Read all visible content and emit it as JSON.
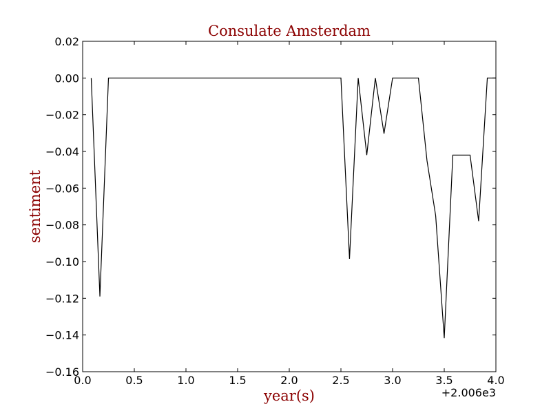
{
  "chart_data": {
    "type": "line",
    "title": "Consulate Amsterdam",
    "xlabel": "year(s)",
    "ylabel": "sentiment",
    "x_offset_label": "+2.006e3",
    "xlim": [
      0.0,
      4.0
    ],
    "ylim": [
      -0.16,
      0.02
    ],
    "x_ticks": [
      0.0,
      0.5,
      1.0,
      1.5,
      2.0,
      2.5,
      3.0,
      3.5,
      4.0
    ],
    "x_tick_labels": [
      "0.0",
      "0.5",
      "1.0",
      "1.5",
      "2.0",
      "2.5",
      "3.0",
      "3.5",
      "4.0"
    ],
    "y_ticks": [
      0.02,
      0.0,
      -0.02,
      -0.04,
      -0.06,
      -0.08,
      -0.1,
      -0.12,
      -0.14,
      -0.16
    ],
    "y_tick_labels": [
      "0.02",
      "0.00",
      "−0.02",
      "−0.04",
      "−0.06",
      "−0.08",
      "−0.10",
      "−0.12",
      "−0.14",
      "−0.16"
    ],
    "grid": false,
    "line_color": "#000000",
    "series": [
      {
        "x": [
          0.083,
          0.167,
          0.25,
          0.333,
          0.417,
          0.5,
          0.583,
          0.667,
          0.75,
          0.833,
          0.917,
          1.0,
          1.083,
          1.167,
          1.25,
          1.333,
          1.417,
          1.5,
          1.583,
          1.667,
          1.75,
          1.833,
          1.917,
          2.0,
          2.083,
          2.167,
          2.25,
          2.333,
          2.417,
          2.5,
          2.583,
          2.667,
          2.75,
          2.833,
          2.917,
          3.0,
          3.083,
          3.167,
          3.25,
          3.333,
          3.417,
          3.5,
          3.583,
          3.667,
          3.75,
          3.833,
          3.917,
          4.0
        ],
        "y": [
          0.0,
          -0.119,
          0.0,
          0.0,
          0.0,
          0.0,
          0.0,
          0.0,
          0.0,
          0.0,
          0.0,
          0.0,
          0.0,
          0.0,
          0.0,
          0.0,
          0.0,
          0.0,
          0.0,
          0.0,
          0.0,
          0.0,
          0.0,
          0.0,
          0.0,
          0.0,
          0.0,
          0.0,
          0.0,
          0.0,
          -0.0985,
          0.0,
          -0.042,
          0.0,
          -0.0303,
          0.0,
          0.0,
          0.0,
          0.0,
          -0.045,
          -0.075,
          -0.1417,
          -0.042,
          -0.042,
          -0.042,
          -0.078,
          0.0,
          0.0
        ]
      }
    ]
  }
}
